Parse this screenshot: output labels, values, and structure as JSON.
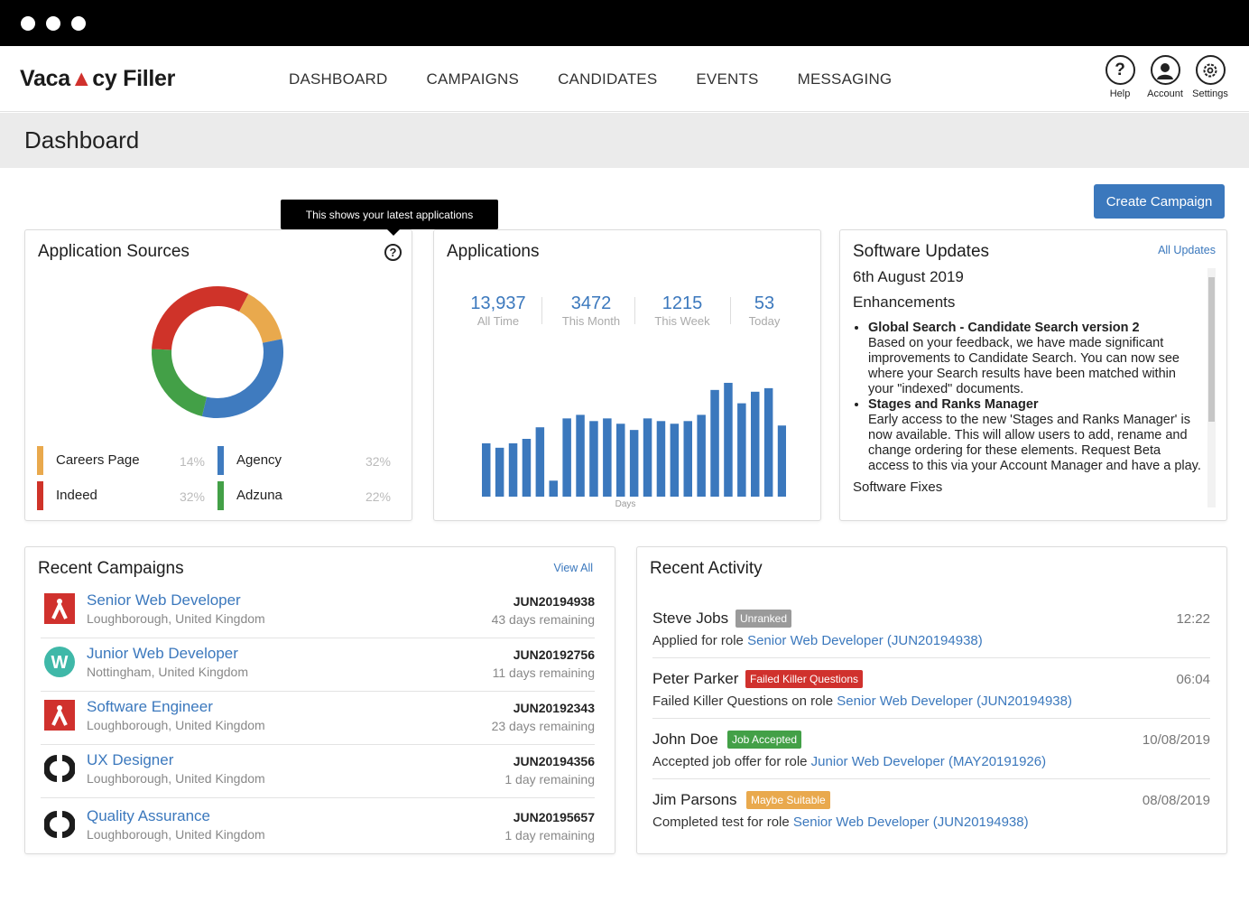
{
  "header": {
    "logo": "Vaca cy Filler",
    "logo_parts": [
      "Vaca",
      "n",
      "cy Filler"
    ],
    "nav": [
      "DASHBOARD",
      "CAMPAIGNS",
      "CANDIDATES",
      "EVENTS",
      "MESSAGING"
    ],
    "icons": [
      {
        "label": "Help",
        "icon": "help-icon"
      },
      {
        "label": "Account",
        "icon": "account-icon"
      },
      {
        "label": "Settings",
        "icon": "settings-icon"
      }
    ]
  },
  "page_title": "Dashboard",
  "create_campaign_label": "Create Campaign",
  "tooltip_text": "This shows your latest applications",
  "sources": {
    "title": "Application Sources",
    "items": [
      {
        "name": "Careers Page",
        "pct": "14%",
        "color": "#e9a94d"
      },
      {
        "name": "Agency",
        "pct": "32%",
        "color": "#3f7bbf"
      },
      {
        "name": "Indeed",
        "pct": "32%",
        "color": "#cf3329"
      },
      {
        "name": "Adzuna",
        "pct": "22%",
        "color": "#43a047"
      }
    ]
  },
  "applications": {
    "title": "Applications",
    "stats": [
      {
        "num": "13,937",
        "cap": "All Time"
      },
      {
        "num": "3472",
        "cap": "This Month"
      },
      {
        "num": "1215",
        "cap": "This Week"
      },
      {
        "num": "53",
        "cap": "Today"
      }
    ],
    "xlabel": "Days",
    "chart_data": {
      "type": "bar",
      "values": [
        60,
        55,
        60,
        65,
        78,
        18,
        88,
        92,
        85,
        88,
        82,
        75,
        88,
        85,
        82,
        85,
        92,
        120,
        128,
        105,
        118,
        122,
        80
      ],
      "ylim": [
        0,
        130
      ],
      "color": "#3b78bd"
    }
  },
  "updates": {
    "title": "Software Updates",
    "all_link": "All Updates",
    "date": "6th August 2019",
    "section": "Enhancements",
    "items": [
      {
        "heading": "Global Search - Candidate Search version 2",
        "body": "Based on your feedback, we have made significant improvements to Candidate Search. You can now see where your Search results have been matched within your \"indexed\" documents."
      },
      {
        "heading": "Stages and Ranks Manager",
        "body": "Early access to the new 'Stages and Ranks Manager' is now available. This will allow users to add, rename and change ordering for these elements. Request Beta access to this via your Account Manager and have a play."
      }
    ],
    "next_section": "Software Fixes"
  },
  "campaigns": {
    "title": "Recent Campaigns",
    "view_all": "View All",
    "rows": [
      {
        "title": "Senior Web Developer",
        "loc": "Loughborough, United Kingdom",
        "code": "JUN20194938",
        "rem": "43 days remaining",
        "logo": "red"
      },
      {
        "title": "Junior Web Developer",
        "loc": "Nottingham, United Kingdom",
        "code": "JUN20192756",
        "rem": "11 days remaining",
        "logo": "teal"
      },
      {
        "title": "Software Engineer",
        "loc": "Loughborough, United Kingdom",
        "code": "JUN20192343",
        "rem": "23 days remaining",
        "logo": "red"
      },
      {
        "title": "UX Designer",
        "loc": "Loughborough, United Kingdom",
        "code": "JUN20194356",
        "rem": "1 day remaining",
        "logo": "dark"
      },
      {
        "title": "Quality Assurance",
        "loc": "Loughborough, United Kingdom",
        "code": "JUN20195657",
        "rem": "1 day remaining",
        "logo": "dark"
      }
    ]
  },
  "activity": {
    "title": "Recent Activity",
    "rows": [
      {
        "who": "Steve Jobs",
        "badge": "Unranked",
        "badge_color": "#9a9a9a",
        "time": "12:22",
        "prefix": "Applied for role ",
        "role": "Senior Web Developer (JUN20194938)"
      },
      {
        "who": "Peter Parker",
        "badge": "Failed Killer Questions",
        "badge_color": "#d0312d",
        "time": "06:04",
        "prefix": "Failed Killer Questions on role ",
        "role": "Senior Web Developer (JUN20194938)"
      },
      {
        "who": "John Doe",
        "badge": "Job Accepted",
        "badge_color": "#43a047",
        "time": "10/08/2019",
        "prefix": "Accepted job offer for role ",
        "role": "Junior Web Developer (MAY20191926)"
      },
      {
        "who": "Jim Parsons",
        "badge": "Maybe Suitable",
        "badge_color": "#e9a94d",
        "time": "08/08/2019",
        "prefix": "Completed test for role ",
        "role": "Senior Web Developer (JUN20194938)"
      }
    ]
  }
}
